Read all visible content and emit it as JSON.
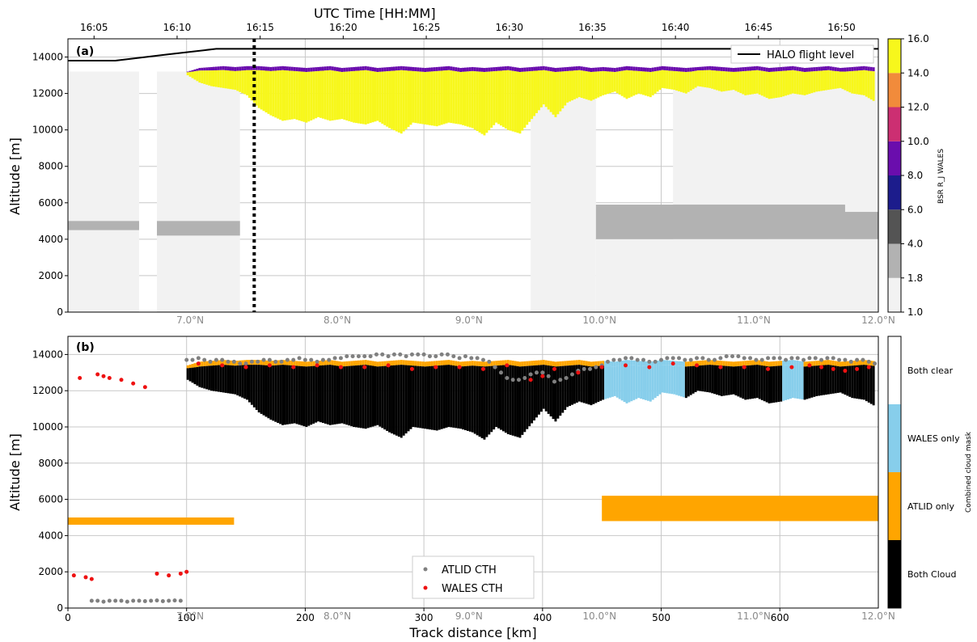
{
  "colors": {
    "bsr": [
      "#f2f2f2",
      "#b2b2b2",
      "#545454",
      "#1c1c8c",
      "#6a0dad",
      "#cc2f72",
      "#f18b3b",
      "#f7f71c"
    ],
    "cloud_cats": [
      "#000000",
      "#ffa500",
      "#87ceeb",
      "#ffffff"
    ],
    "atlid_cth_marker": "#808080",
    "wales_cth_marker": "#ee1111",
    "flight_level": "#000000"
  },
  "chart_data": [
    {
      "type": "heatmap",
      "panel_label": "(a)",
      "top_axis": {
        "label": "UTC Time [HH:MM]",
        "ticks": [
          "16:05",
          "16:10",
          "16:15",
          "16:20",
          "16:25",
          "16:30",
          "16:35",
          "16:40",
          "16:45",
          "16:50"
        ],
        "tick_km": [
          22,
          92,
          162,
          232,
          302,
          372,
          442,
          512,
          582,
          652
        ]
      },
      "ylabel": "Altitude [m]",
      "ylim": [
        0,
        15000
      ],
      "yticks": [
        0,
        2000,
        4000,
        6000,
        8000,
        10000,
        12000,
        14000
      ],
      "lat_ticks": [
        "7.0°N",
        "8.0°N",
        "9.0°N",
        "10.0°N",
        "11.0°N",
        "12.0°N"
      ],
      "lat_tick_km": [
        103,
        227,
        338,
        448,
        578,
        683
      ],
      "xlim_km": [
        0,
        683
      ],
      "colorbar": {
        "label": "BSR R_J WALES",
        "ticks": [
          "1.0",
          "1.8",
          "4.0",
          "6.0",
          "8.0",
          "10.0",
          "12.0",
          "14.0",
          "16.0"
        ]
      },
      "legend": {
        "entries": [
          "HALO flight level"
        ],
        "placement": "upper right"
      },
      "annotations": {
        "vertical_dotted_line_km": 157
      },
      "flight_level": {
        "km": [
          0,
          40,
          85,
          125,
          683
        ],
        "alt_m": [
          13800,
          13800,
          14150,
          14450,
          14450
        ]
      },
      "cloud_top_profile": {
        "km": [
          0,
          10,
          20,
          30,
          40,
          50,
          60,
          70,
          80,
          90,
          100,
          110,
          120,
          130,
          140,
          150,
          160,
          170,
          180,
          190,
          200,
          210,
          220,
          230,
          240,
          250,
          260,
          270,
          280,
          290,
          300,
          310,
          320,
          330,
          340,
          350,
          360,
          370,
          380,
          390,
          400,
          410,
          420,
          430,
          440,
          450,
          460,
          470,
          480,
          490,
          500,
          510,
          520,
          530,
          540,
          550,
          560,
          570,
          580,
          590,
          600,
          610,
          620,
          630,
          640,
          650,
          660,
          670,
          683
        ],
        "top_m": [
          13000,
          13100,
          13050,
          13100,
          13050,
          13100,
          13000,
          13000,
          13050,
          13100,
          13200,
          13400,
          13450,
          13500,
          13450,
          13500,
          13500,
          13450,
          13500,
          13450,
          13400,
          13450,
          13500,
          13400,
          13450,
          13500,
          13400,
          13450,
          13500,
          13450,
          13400,
          13450,
          13500,
          13400,
          13450,
          13400,
          13450,
          13500,
          13400,
          13450,
          13500,
          13400,
          13450,
          13500,
          13400,
          13450,
          13400,
          13500,
          13450,
          13400,
          13500,
          13450,
          13400,
          13450,
          13500,
          13450,
          13400,
          13450,
          13500,
          13400,
          13450,
          13500,
          13400,
          13450,
          13500,
          13400,
          13450,
          13500,
          13400
        ],
        "bottom_m": [
          13000,
          12900,
          12800,
          12900,
          13000,
          12900,
          13000,
          13000,
          12800,
          12900,
          13000,
          12600,
          12400,
          12300,
          12200,
          11900,
          11200,
          10800,
          10500,
          10600,
          10400,
          10700,
          10500,
          10600,
          10400,
          10300,
          10500,
          10100,
          9800,
          10400,
          10300,
          10200,
          10400,
          10300,
          10100,
          9700,
          10400,
          10000,
          9800,
          10600,
          11400,
          10700,
          11500,
          11800,
          11600,
          11900,
          12100,
          11700,
          12000,
          11800,
          12300,
          12200,
          12000,
          12400,
          12300,
          12100,
          12200,
          11900,
          12000,
          11700,
          11800,
          12000,
          11900,
          12100,
          12200,
          12300,
          12000,
          11900,
          11400
        ]
      }
    },
    {
      "type": "heatmap",
      "panel_label": "(b)",
      "xlabel": "Track distance [km]",
      "xticks": [
        "0",
        "100",
        "200",
        "300",
        "400",
        "500",
        "600"
      ],
      "xtick_values": [
        0,
        100,
        200,
        300,
        400,
        500,
        600
      ],
      "xlim_km": [
        0,
        683
      ],
      "ylabel": "Altitude [m]",
      "ylim": [
        0,
        15000
      ],
      "yticks": [
        0,
        2000,
        4000,
        6000,
        8000,
        10000,
        12000,
        14000
      ],
      "lat_ticks": [
        "7.0°N",
        "8.0°N",
        "9.0°N",
        "10.0°N",
        "11.0°N",
        "12.0°N"
      ],
      "lat_tick_km": [
        103,
        227,
        338,
        448,
        578,
        683
      ],
      "colorbar": {
        "label": "Combined cloud mask",
        "categories": [
          "Both Cloud",
          "ATLID only",
          "WALES only",
          "Both clear"
        ]
      },
      "legend": {
        "entries": [
          "ATLID CTH",
          "WALES CTH"
        ],
        "placement": "lower center"
      },
      "atlid_cth": {
        "km": [
          20,
          25,
          30,
          35,
          40,
          45,
          50,
          55,
          60,
          65,
          70,
          75,
          80,
          85,
          90,
          95,
          100,
          105,
          110,
          115,
          120,
          125,
          130,
          135,
          140,
          145,
          150,
          155,
          160,
          165,
          170,
          175,
          180,
          185,
          190,
          195,
          200,
          205,
          210,
          215,
          220,
          225,
          230,
          235,
          240,
          245,
          250,
          255,
          260,
          265,
          270,
          275,
          280,
          285,
          290,
          295,
          300,
          305,
          310,
          315,
          320,
          325,
          330,
          335,
          340,
          345,
          350,
          355,
          360,
          365,
          370,
          375,
          380,
          385,
          390,
          395,
          400,
          405,
          410,
          415,
          420,
          425,
          430,
          435,
          440,
          445,
          450,
          455,
          460,
          465,
          470,
          475,
          480,
          485,
          490,
          495,
          500,
          505,
          510,
          515,
          520,
          525,
          530,
          535,
          540,
          545,
          550,
          555,
          560,
          565,
          570,
          575,
          580,
          585,
          590,
          595,
          600,
          605,
          610,
          615,
          620,
          625,
          630,
          635,
          640,
          645,
          650,
          655,
          660,
          665,
          670,
          675,
          680
        ],
        "alt_m": [
          400,
          400,
          350,
          400,
          400,
          400,
          350,
          400,
          400,
          380,
          400,
          420,
          380,
          400,
          420,
          400,
          13700,
          13700,
          13800,
          13700,
          13600,
          13700,
          13700,
          13600,
          13600,
          13500,
          13500,
          13600,
          13600,
          13700,
          13700,
          13600,
          13600,
          13700,
          13700,
          13800,
          13700,
          13700,
          13600,
          13700,
          13700,
          13800,
          13800,
          13900,
          13900,
          13900,
          13900,
          13900,
          14000,
          14000,
          13900,
          14000,
          14000,
          13900,
          14000,
          14000,
          14000,
          13900,
          13900,
          14000,
          14000,
          13900,
          13800,
          13900,
          13800,
          13800,
          13700,
          13600,
          13300,
          13000,
          12700,
          12600,
          12600,
          12700,
          12900,
          13000,
          13000,
          12800,
          12500,
          12600,
          12700,
          12900,
          13100,
          13200,
          13200,
          13300,
          13400,
          13600,
          13700,
          13700,
          13800,
          13800,
          13700,
          13700,
          13600,
          13600,
          13700,
          13800,
          13800,
          13800,
          13700,
          13700,
          13800,
          13800,
          13700,
          13700,
          13800,
          13900,
          13900,
          13900,
          13800,
          13800,
          13700,
          13700,
          13800,
          13800,
          13800,
          13700,
          13800,
          13800,
          13700,
          13800,
          13800,
          13700,
          13800,
          13800,
          13700,
          13700,
          13600,
          13700,
          13700,
          13600,
          13500
        ]
      },
      "wales_cth": {
        "km": [
          5,
          10,
          15,
          20,
          25,
          30,
          35,
          45,
          55,
          65,
          75,
          85,
          95,
          100,
          110,
          130,
          150,
          170,
          190,
          210,
          230,
          250,
          270,
          290,
          310,
          330,
          350,
          370,
          390,
          400,
          410,
          430,
          450,
          470,
          490,
          510,
          530,
          550,
          570,
          590,
          610,
          625,
          635,
          645,
          655,
          665,
          675
        ],
        "alt_m": [
          1800,
          12700,
          1700,
          1600,
          12900,
          12800,
          12700,
          12600,
          12400,
          12200,
          1900,
          1800,
          1900,
          2000,
          13500,
          13400,
          13300,
          13400,
          13300,
          13400,
          13300,
          13300,
          13400,
          13200,
          13300,
          13300,
          13200,
          13400,
          12600,
          12800,
          13200,
          13000,
          13300,
          13400,
          13300,
          13500,
          13400,
          13300,
          13300,
          13200,
          13300,
          13400,
          13300,
          13200,
          13100,
          13200,
          13300
        ]
      },
      "regions": [
        {
          "category": "Both Cloud",
          "km_start": 100,
          "km_end": 680,
          "top_profile_ref": "a"
        },
        {
          "category": "ATLID only",
          "km_start": 0,
          "km_end": 140,
          "alt_m": [
            4600,
            5000
          ]
        },
        {
          "category": "ATLID only",
          "km_start": 450,
          "km_end": 683,
          "alt_m": [
            4800,
            6200
          ]
        }
      ]
    }
  ]
}
